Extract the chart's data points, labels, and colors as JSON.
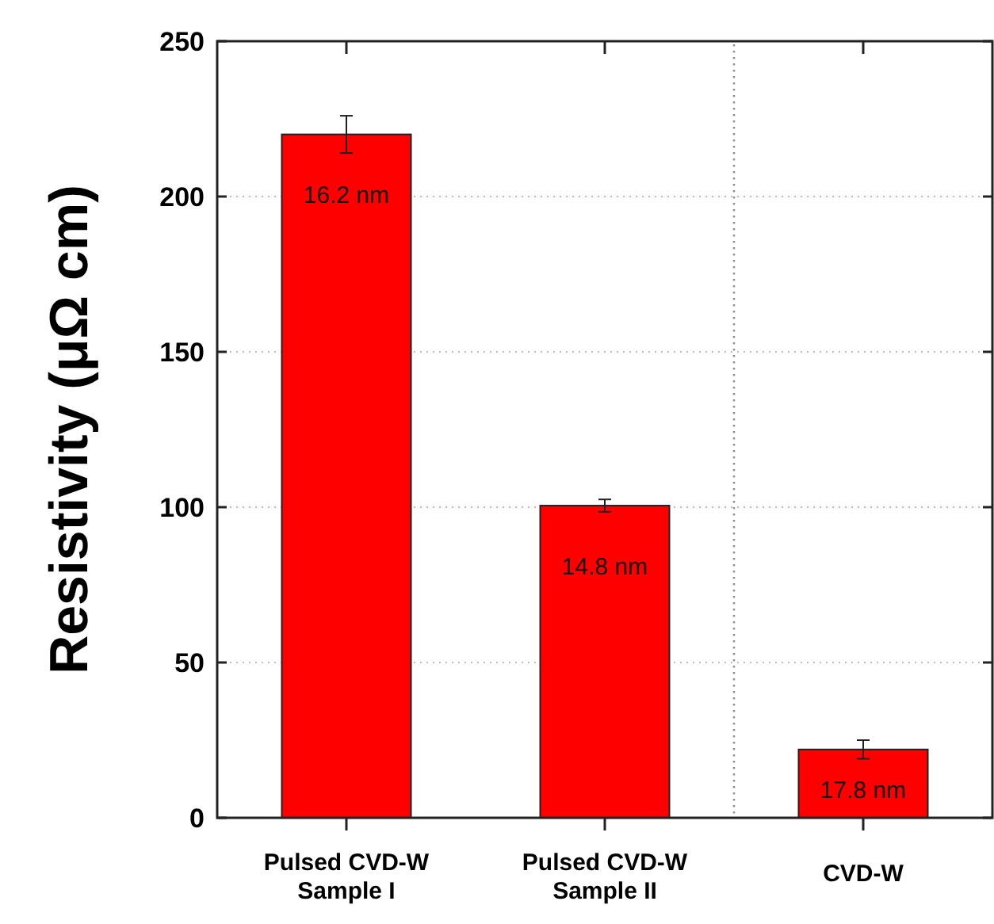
{
  "chart_data": {
    "type": "bar",
    "ylabel": "Resistivity (μΩ cm)",
    "categories": [
      "Pulsed CVD-W\nSample I",
      "Pulsed CVD-W\nSample II",
      "CVD-W"
    ],
    "values": [
      220,
      100.5,
      22
    ],
    "errors": [
      6,
      2,
      3
    ],
    "color": "#ff0000",
    "ylim": [
      0,
      250
    ],
    "yticks": [
      0,
      50,
      100,
      150,
      200,
      250
    ],
    "grid": "y",
    "annotations": [
      "16.2 nm",
      "14.8 nm",
      "17.8 nm"
    ]
  }
}
